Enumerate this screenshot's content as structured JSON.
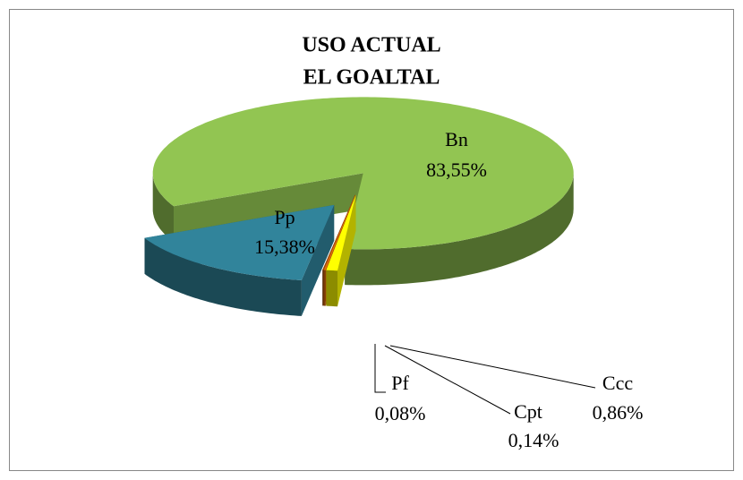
{
  "chart_data": {
    "type": "pie3d",
    "title": [
      "USO ACTUAL",
      "EL GOALTAL"
    ],
    "categories": [
      "Bn",
      "Ccc",
      "Cpt",
      "Pf",
      "Pp"
    ],
    "values": [
      83.55,
      0.86,
      0.14,
      0.08,
      15.38
    ],
    "value_labels": [
      "83,55%",
      "0,86%",
      "0,14%",
      "0,08%",
      "15,38%"
    ],
    "colors": [
      "#92c552",
      "#ffff00",
      "#e46c0a",
      "#974706",
      "#31849b"
    ]
  }
}
